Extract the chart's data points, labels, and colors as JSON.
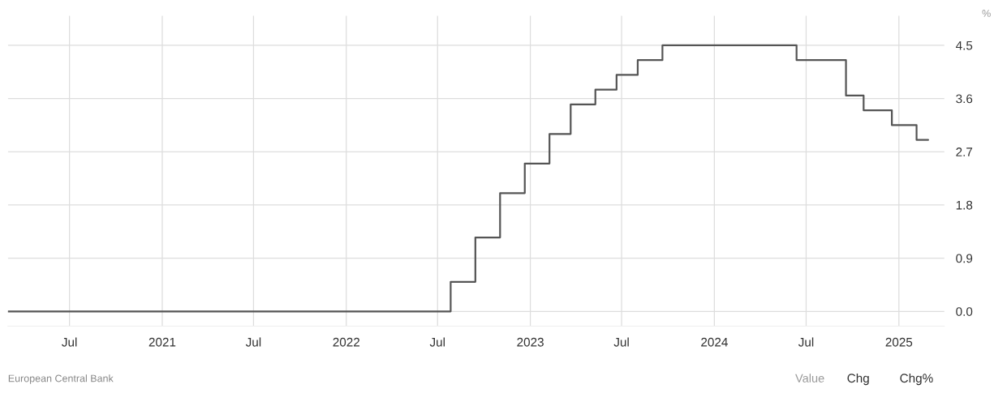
{
  "chart_data": {
    "type": "step",
    "ylabel": "%",
    "x": [
      "2020-03-01",
      "2022-07-27",
      "2022-09-14",
      "2022-11-02",
      "2022-12-21",
      "2023-02-08",
      "2023-03-22",
      "2023-05-10",
      "2023-06-21",
      "2023-08-02",
      "2023-09-20",
      "2024-06-12",
      "2024-09-18",
      "2024-10-23",
      "2024-12-18",
      "2025-02-05",
      "2025-02-28"
    ],
    "series": [
      {
        "color": "#555555",
        "values": [
          0,
          0.5,
          1.25,
          2.0,
          2.5,
          3.0,
          3.5,
          3.75,
          4.0,
          4.25,
          4.5,
          4.25,
          3.65,
          3.4,
          3.15,
          2.9,
          2.9
        ]
      }
    ],
    "xlim": [
      "2020-03-01",
      "2025-04-01"
    ],
    "ylim": [
      -0.25,
      5.0
    ],
    "xticks": [
      {
        "value": "2020-07-01",
        "label": "Jul"
      },
      {
        "value": "2021-01-01",
        "label": "2021"
      },
      {
        "value": "2021-07-01",
        "label": "Jul"
      },
      {
        "value": "2022-01-01",
        "label": "2022"
      },
      {
        "value": "2022-07-01",
        "label": "Jul"
      },
      {
        "value": "2023-01-01",
        "label": "2023"
      },
      {
        "value": "2023-07-01",
        "label": "Jul"
      },
      {
        "value": "2024-01-01",
        "label": "2024"
      },
      {
        "value": "2024-07-01",
        "label": "Jul"
      },
      {
        "value": "2025-01-01",
        "label": "2025"
      }
    ],
    "yticks": [
      {
        "value": 0,
        "label": "0.0"
      },
      {
        "value": 0.9,
        "label": "0.9"
      },
      {
        "value": 1.8,
        "label": "1.8"
      },
      {
        "value": 2.7,
        "label": "2.7"
      },
      {
        "value": 3.6,
        "label": "3.6"
      },
      {
        "value": 4.5,
        "label": "4.5"
      }
    ],
    "grid": true,
    "line_style": "solid",
    "annotations": [
      "European Central Bank",
      "Value",
      "Chg",
      "Chg%"
    ]
  }
}
